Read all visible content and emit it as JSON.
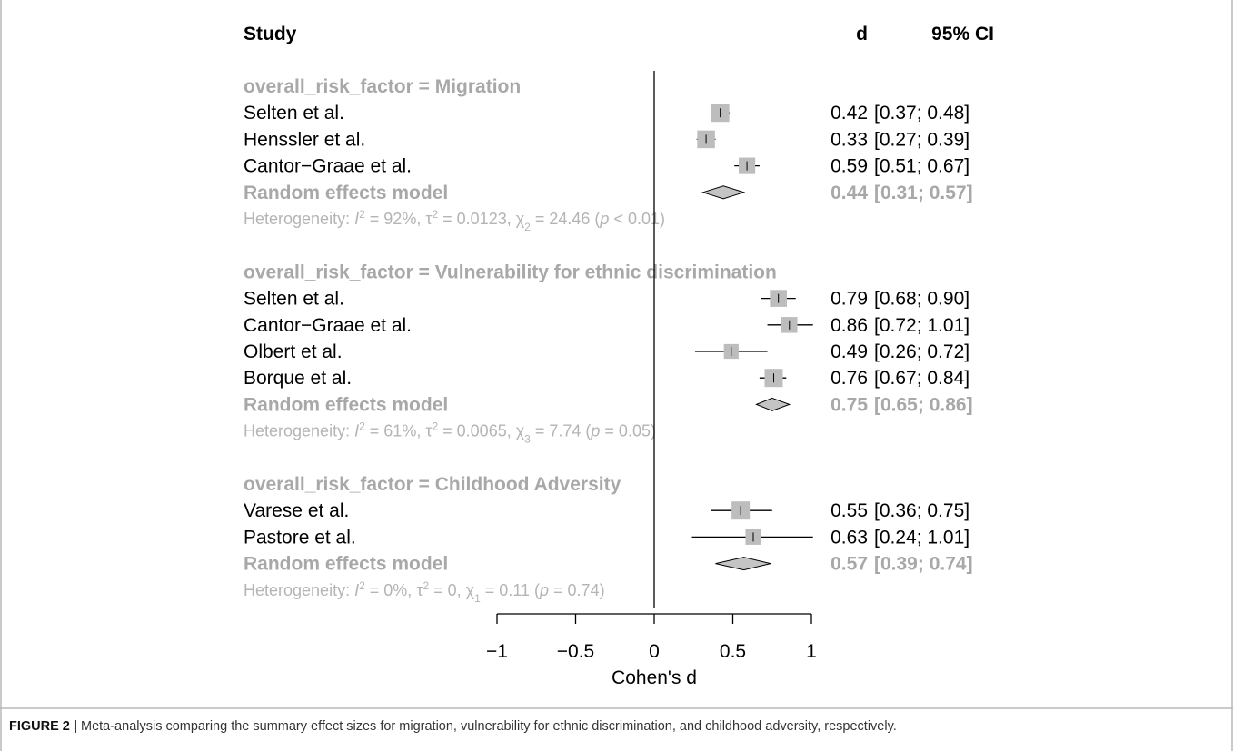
{
  "chart_data": {
    "type": "forest",
    "xlabel": "Cohen's d",
    "xlim": [
      -1,
      1
    ],
    "ticks": [
      "-1",
      "-0.5",
      "0",
      "0.5",
      "1"
    ],
    "ref_line": 0,
    "headers": {
      "study": "Study",
      "d": "d",
      "ci": "95% CI"
    },
    "groups": [
      {
        "title": "overall_risk_factor = Migration",
        "studies": [
          {
            "name": "Selten et al.",
            "d": 0.42,
            "lower": 0.37,
            "upper": 0.48,
            "d_text": "0.42",
            "ci_text": "[0.37; 0.48]"
          },
          {
            "name": "Henssler et al.",
            "d": 0.33,
            "lower": 0.27,
            "upper": 0.39,
            "d_text": "0.33",
            "ci_text": "[0.27; 0.39]"
          },
          {
            "name": "Cantor−Graae et al.",
            "d": 0.59,
            "lower": 0.51,
            "upper": 0.67,
            "d_text": "0.59",
            "ci_text": "[0.51; 0.67]"
          }
        ],
        "summary": {
          "label": "Random effects model",
          "d": 0.44,
          "lower": 0.31,
          "upper": 0.57,
          "d_text": "0.44",
          "ci_text": "[0.31; 0.57]"
        },
        "heterogeneity": {
          "i2": "92%",
          "tau2": "0.0123",
          "chi_df": "2",
          "chi": "24.46",
          "p_op": "<",
          "p": "0.01"
        }
      },
      {
        "title": "overall_risk_factor = Vulnerability for ethnic discrimination",
        "studies": [
          {
            "name": "Selten et al.",
            "d": 0.79,
            "lower": 0.68,
            "upper": 0.9,
            "d_text": "0.79",
            "ci_text": "[0.68; 0.90]"
          },
          {
            "name": "Cantor−Graae et al.",
            "d": 0.86,
            "lower": 0.72,
            "upper": 1.01,
            "d_text": "0.86",
            "ci_text": "[0.72; 1.01]"
          },
          {
            "name": "Olbert et al.",
            "d": 0.49,
            "lower": 0.26,
            "upper": 0.72,
            "d_text": "0.49",
            "ci_text": "[0.26; 0.72]"
          },
          {
            "name": "Borque et al.",
            "d": 0.76,
            "lower": 0.67,
            "upper": 0.84,
            "d_text": "0.76",
            "ci_text": "[0.67; 0.84]"
          }
        ],
        "summary": {
          "label": "Random effects model",
          "d": 0.75,
          "lower": 0.65,
          "upper": 0.86,
          "d_text": "0.75",
          "ci_text": "[0.65; 0.86]"
        },
        "heterogeneity": {
          "i2": "61%",
          "tau2": "0.0065",
          "chi_df": "3",
          "chi": "7.74",
          "p_op": "=",
          "p": "0.05"
        }
      },
      {
        "title": "overall_risk_factor = Childhood Adversity",
        "studies": [
          {
            "name": "Varese et al.",
            "d": 0.55,
            "lower": 0.36,
            "upper": 0.75,
            "d_text": "0.55",
            "ci_text": "[0.36; 0.75]"
          },
          {
            "name": "Pastore et al.",
            "d": 0.63,
            "lower": 0.24,
            "upper": 1.01,
            "d_text": "0.63",
            "ci_text": "[0.24; 1.01]"
          }
        ],
        "summary": {
          "label": "Random effects model",
          "d": 0.57,
          "lower": 0.39,
          "upper": 0.74,
          "d_text": "0.57",
          "ci_text": "[0.39; 0.74]"
        },
        "heterogeneity": {
          "i2": "0%",
          "tau2": "0",
          "chi_df": "1",
          "chi": "0.11",
          "p_op": "=",
          "p": "0.74"
        }
      }
    ],
    "colors": {
      "text": "#000000",
      "summary_text": "#a8a8a8",
      "heterogeneity_text": "#b4b4b4",
      "square": "#bdbdbd",
      "diamond": "#c4c4c4",
      "frame": "#b8b8b8"
    }
  },
  "caption": {
    "label": "FIGURE 2 |",
    "text": " Meta-analysis comparing the summary effect sizes for migration, vulnerability for ethnic discrimination, and childhood adversity, respectively."
  }
}
